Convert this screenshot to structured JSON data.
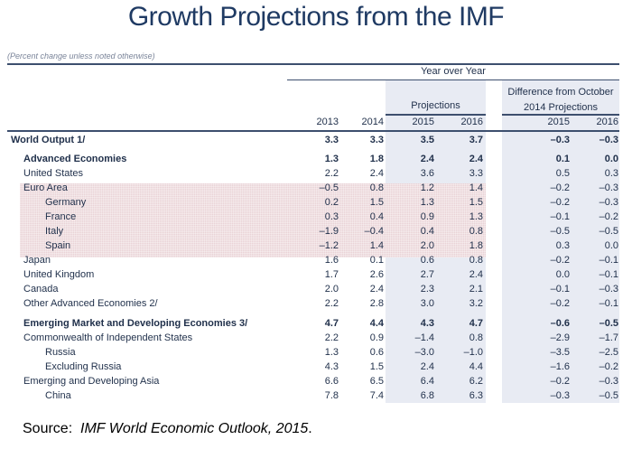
{
  "title": "Growth Projections from the IMF",
  "subtitle": "(Percent change unless noted otherwise)",
  "header": {
    "group": "Year over Year",
    "projections": "Projections",
    "difference_line1": "Difference from October",
    "difference_line2": "2014 Projections",
    "columns": [
      "2013",
      "2014",
      "2015",
      "2016",
      "2015",
      "2016"
    ]
  },
  "rows": [
    {
      "label": "World Output 1/",
      "level": 0,
      "bold": true,
      "values": [
        "3.3",
        "3.3",
        "3.5",
        "3.7",
        "–0.3",
        "–0.3"
      ]
    },
    {
      "label": "Advanced Economies",
      "level": 1,
      "bold": true,
      "values": [
        "1.3",
        "1.8",
        "2.4",
        "2.4",
        "0.1",
        "0.0"
      ]
    },
    {
      "label": "United States",
      "level": 1,
      "bold": false,
      "values": [
        "2.2",
        "2.4",
        "3.6",
        "3.3",
        "0.5",
        "0.3"
      ]
    },
    {
      "label": "Euro Area",
      "level": 1,
      "bold": false,
      "highlight": true,
      "values": [
        "–0.5",
        "0.8",
        "1.2",
        "1.4",
        "–0.2",
        "–0.3"
      ]
    },
    {
      "label": "Germany",
      "level": 2,
      "bold": false,
      "highlight": true,
      "values": [
        "0.2",
        "1.5",
        "1.3",
        "1.5",
        "–0.2",
        "–0.3"
      ]
    },
    {
      "label": "France",
      "level": 2,
      "bold": false,
      "highlight": true,
      "values": [
        "0.3",
        "0.4",
        "0.9",
        "1.3",
        "–0.1",
        "–0.2"
      ]
    },
    {
      "label": "Italy",
      "level": 2,
      "bold": false,
      "highlight": true,
      "values": [
        "–1.9",
        "–0.4",
        "0.4",
        "0.8",
        "–0.5",
        "–0.5"
      ]
    },
    {
      "label": "Spain",
      "level": 2,
      "bold": false,
      "highlight": true,
      "values": [
        "–1.2",
        "1.4",
        "2.0",
        "1.8",
        "0.3",
        "0.0"
      ]
    },
    {
      "label": "Japan",
      "level": 1,
      "bold": false,
      "values": [
        "1.6",
        "0.1",
        "0.6",
        "0.8",
        "–0.2",
        "–0.1"
      ]
    },
    {
      "label": "United Kingdom",
      "level": 1,
      "bold": false,
      "values": [
        "1.7",
        "2.6",
        "2.7",
        "2.4",
        "0.0",
        "–0.1"
      ]
    },
    {
      "label": "Canada",
      "level": 1,
      "bold": false,
      "values": [
        "2.0",
        "2.4",
        "2.3",
        "2.1",
        "–0.1",
        "–0.3"
      ]
    },
    {
      "label": "Other Advanced Economies 2/",
      "level": 1,
      "bold": false,
      "values": [
        "2.2",
        "2.8",
        "3.0",
        "3.2",
        "–0.2",
        "–0.1"
      ]
    },
    {
      "label": "Emerging Market and Developing Economies 3/",
      "level": 1,
      "bold": true,
      "values": [
        "4.7",
        "4.4",
        "4.3",
        "4.7",
        "–0.6",
        "–0.5"
      ]
    },
    {
      "label": "Commonwealth of Independent States",
      "level": 1,
      "bold": false,
      "values": [
        "2.2",
        "0.9",
        "–1.4",
        "0.8",
        "–2.9",
        "–1.7"
      ]
    },
    {
      "label": "Russia",
      "level": 2,
      "bold": false,
      "values": [
        "1.3",
        "0.6",
        "–3.0",
        "–1.0",
        "–3.5",
        "–2.5"
      ]
    },
    {
      "label": "Excluding Russia",
      "level": 2,
      "bold": false,
      "values": [
        "4.3",
        "1.5",
        "2.4",
        "4.4",
        "–1.6",
        "–0.2"
      ]
    },
    {
      "label": "Emerging and Developing Asia",
      "level": 1,
      "bold": false,
      "values": [
        "6.6",
        "6.5",
        "6.4",
        "6.2",
        "–0.2",
        "–0.3"
      ]
    },
    {
      "label": "China",
      "level": 2,
      "bold": false,
      "values": [
        "7.8",
        "7.4",
        "6.8",
        "6.3",
        "–0.3",
        "–0.5"
      ]
    }
  ],
  "source": {
    "prefix": "Source:",
    "text": "IMF World Economic Outlook, 2015",
    "suffix": "."
  },
  "colors": {
    "title": "#1f3a63",
    "highlight": "#e9d2d6",
    "projection_shade": "#e8ebf3",
    "rule": "#3d4f6e"
  }
}
